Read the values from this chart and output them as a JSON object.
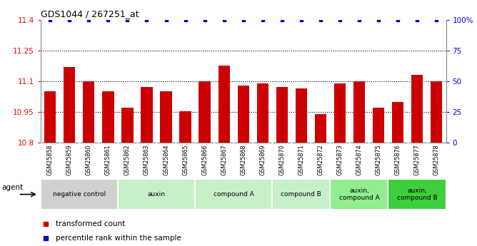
{
  "title": "GDS1044 / 267251_at",
  "categories": [
    "GSM25858",
    "GSM25859",
    "GSM25860",
    "GSM25861",
    "GSM25862",
    "GSM25863",
    "GSM25864",
    "GSM25865",
    "GSM25866",
    "GSM25867",
    "GSM25868",
    "GSM25869",
    "GSM25870",
    "GSM25871",
    "GSM25872",
    "GSM25873",
    "GSM25874",
    "GSM25875",
    "GSM25876",
    "GSM25877",
    "GSM25878"
  ],
  "bar_values": [
    11.05,
    11.17,
    11.1,
    11.05,
    10.97,
    11.07,
    11.05,
    10.955,
    11.1,
    11.175,
    11.08,
    11.09,
    11.07,
    11.065,
    10.94,
    11.09,
    11.1,
    10.97,
    11.0,
    11.13,
    11.1
  ],
  "percentile_values": [
    100,
    100,
    100,
    100,
    100,
    100,
    100,
    100,
    100,
    100,
    100,
    100,
    100,
    100,
    100,
    100,
    100,
    100,
    100,
    100,
    100
  ],
  "bar_color": "#cc0000",
  "percentile_color": "#0000cc",
  "ylim_left": [
    10.8,
    11.4
  ],
  "ylim_right": [
    0,
    100
  ],
  "yticks_left": [
    10.8,
    10.95,
    11.1,
    11.25,
    11.4
  ],
  "yticks_right": [
    0,
    25,
    50,
    75,
    100
  ],
  "ytick_labels_left": [
    "10.8",
    "10.95",
    "11.1",
    "11.25",
    "11.4"
  ],
  "ytick_labels_right": [
    "0",
    "25",
    "50",
    "75",
    "100%"
  ],
  "hlines": [
    10.95,
    11.1,
    11.25
  ],
  "groups": [
    {
      "label": "negative control",
      "start": 0,
      "end": 3,
      "color": "#d0d0d0"
    },
    {
      "label": "auxin",
      "start": 4,
      "end": 7,
      "color": "#c8f0c8"
    },
    {
      "label": "compound A",
      "start": 8,
      "end": 11,
      "color": "#c8f0c8"
    },
    {
      "label": "compound B",
      "start": 12,
      "end": 14,
      "color": "#c8f0c8"
    },
    {
      "label": "auxin,\ncompound A",
      "start": 15,
      "end": 17,
      "color": "#90ee90"
    },
    {
      "label": "auxin,\ncompound B",
      "start": 18,
      "end": 20,
      "color": "#3ecf3e"
    }
  ],
  "xtick_bg_color": "#d8d8d8",
  "legend_items": [
    {
      "label": "transformed count",
      "color": "#cc0000"
    },
    {
      "label": "percentile rank within the sample",
      "color": "#0000cc"
    }
  ],
  "agent_label": "agent",
  "bar_width": 0.6
}
